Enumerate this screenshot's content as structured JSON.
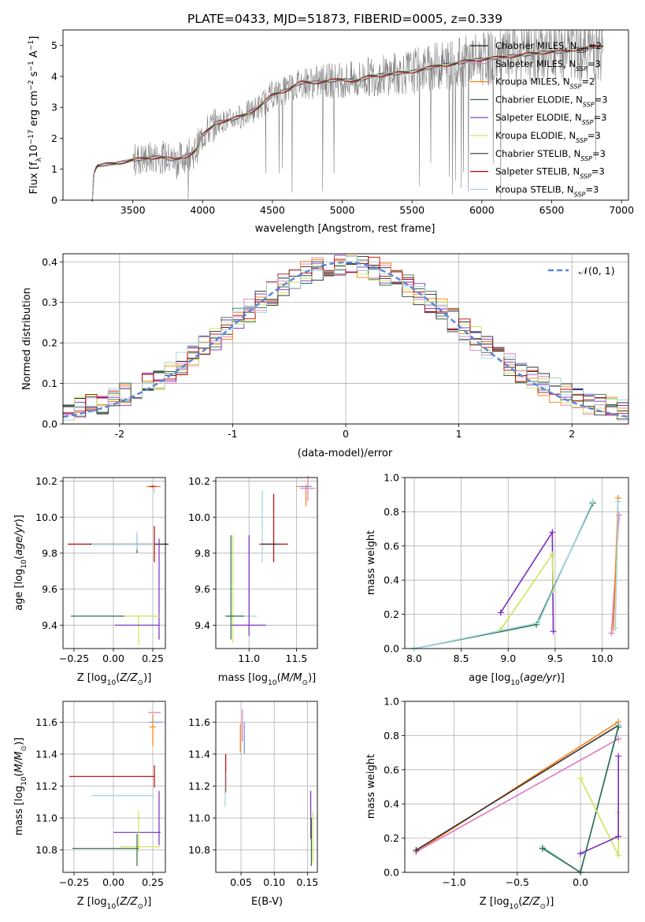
{
  "figure_title": "PLATE=0433, MJD=51873, FIBERID=0005, z=0.339",
  "colors": {
    "Chabrier MILES": "#1f1f1f",
    "Salpeter MILES": "#e377c2",
    "Kroupa MILES": "#ff7f0e",
    "Chabrier ELODIE": "#2c6e49",
    "Salpeter ELODIE": "#7b2cbf",
    "Kroupa ELODIE": "#cfe35a",
    "Chabrier STELIB": "#303030",
    "Salpeter STELIB": "#c00000",
    "Kroupa STELIB": "#9fd8e0",
    "observed": "#808080",
    "gauss": "#5b86d8",
    "extra_blue": "#6495ed"
  },
  "legend_models": [
    {
      "name": "Chabrier MILES",
      "nssp": "2"
    },
    {
      "name": "Salpeter MILES",
      "nssp": "3"
    },
    {
      "name": "Kroupa MILES",
      "nssp": "2"
    },
    {
      "name": "Chabrier ELODIE",
      "nssp": "3"
    },
    {
      "name": "Salpeter ELODIE",
      "nssp": "3"
    },
    {
      "name": "Kroupa ELODIE",
      "nssp": "3"
    },
    {
      "name": "Chabrier STELIB",
      "nssp": "3"
    },
    {
      "name": "Salpeter STELIB",
      "nssp": "3"
    },
    {
      "name": "Kroupa STELIB",
      "nssp": "3"
    }
  ],
  "chart_data": [
    {
      "id": "spectrum",
      "type": "line",
      "xlabel": "wavelength [Angstrom, rest frame]",
      "ylabel": "Flux [f_λ 10^-17 erg cm^-2 s^-1 A^-1]",
      "xlim": [
        3000,
        7050
      ],
      "ylim": [
        0,
        5.5
      ],
      "xticks": [
        3500,
        4000,
        4500,
        5000,
        5500,
        6000,
        6500,
        7000
      ],
      "yticks": [
        0,
        1,
        2,
        3,
        4,
        5
      ],
      "grid": false,
      "legend": "top-right",
      "continuum": [
        [
          3210,
          0.0
        ],
        [
          3215,
          0.8
        ],
        [
          3240,
          1.1
        ],
        [
          3300,
          1.15
        ],
        [
          3400,
          1.2
        ],
        [
          3500,
          1.3
        ],
        [
          3600,
          1.35
        ],
        [
          3700,
          1.4
        ],
        [
          3800,
          1.3
        ],
        [
          3900,
          1.45
        ],
        [
          3950,
          1.6
        ],
        [
          4000,
          2.1
        ],
        [
          4100,
          2.5
        ],
        [
          4200,
          2.6
        ],
        [
          4300,
          2.75
        ],
        [
          4400,
          3.0
        ],
        [
          4500,
          3.4
        ],
        [
          4600,
          3.55
        ],
        [
          4700,
          3.8
        ],
        [
          4800,
          3.8
        ],
        [
          4900,
          3.85
        ],
        [
          5000,
          3.9
        ],
        [
          5100,
          3.85
        ],
        [
          5200,
          4.0
        ],
        [
          5300,
          4.05
        ],
        [
          5400,
          4.1
        ],
        [
          5500,
          4.15
        ],
        [
          5600,
          4.25
        ],
        [
          5700,
          4.35
        ],
        [
          5800,
          4.4
        ],
        [
          5900,
          4.5
        ],
        [
          6000,
          4.55
        ],
        [
          6100,
          4.6
        ],
        [
          6200,
          4.65
        ],
        [
          6300,
          4.7
        ],
        [
          6400,
          4.75
        ],
        [
          6500,
          4.8
        ],
        [
          6600,
          4.8
        ],
        [
          6700,
          4.9
        ],
        [
          6800,
          4.95
        ],
        [
          6870,
          4.98
        ]
      ]
    },
    {
      "id": "residuals",
      "type": "line",
      "xlabel": "(data-model)/error",
      "ylabel": "Normed distribution",
      "xlim": [
        -2.5,
        2.5
      ],
      "ylim": [
        0,
        0.42
      ],
      "xticks": [
        -2,
        -1,
        0,
        1,
        2
      ],
      "yticks": [
        0.0,
        0.1,
        0.2,
        0.3,
        0.4
      ],
      "grid": true,
      "legend": "top-right",
      "gauss_label": "𝒩(0, 1)"
    },
    {
      "id": "age_vs_Z",
      "type": "scatter",
      "xlabel": "Z [log10(Z/Z⊙)]",
      "ylabel": "age [log10(age/yr)]",
      "xlim": [
        -0.32,
        0.33
      ],
      "ylim": [
        9.27,
        10.22
      ],
      "xticks": [
        -0.25,
        0.0,
        0.25
      ],
      "xtick_labels": [
        "−0.25",
        "0.00",
        "0.25"
      ],
      "yticks": [
        9.4,
        9.6,
        9.8,
        10.0,
        10.2
      ],
      "grid": true,
      "crosses": [
        {
          "m": "Salpeter MILES",
          "x": 0.27,
          "xe": 0.03,
          "y": 10.17,
          "ye": 0.0
        },
        {
          "m": "Kroupa MILES",
          "x": 0.25,
          "xe": 0.04,
          "y": 10.17,
          "ye": 0.01
        },
        {
          "m": "Salpeter STELIB",
          "x": 0.25,
          "xe": 0.02,
          "y": 10.17,
          "ye": 0.0
        },
        {
          "m": "Kroupa STELIB",
          "x": 0.26,
          "xe": 0.0,
          "y": 10.15,
          "ye": 0.02
        },
        {
          "m": "Salpeter STELIB",
          "x": 0.26,
          "xe": 0.0,
          "y": 9.85,
          "ye": 0.1
        },
        {
          "m": "Salpeter STELIB",
          "x": -0.02,
          "xe": 0.27,
          "y": 9.85,
          "ye": 0.0
        },
        {
          "m": "Chabrier MILES",
          "x": 0.1,
          "xe": 0.25,
          "y": 9.85,
          "ye": 0.0
        },
        {
          "m": "Kroupa STELIB",
          "x": 0.06,
          "xe": 0.2,
          "y": 9.85,
          "ye": 0.0
        },
        {
          "m": "Chabrier ELODIE",
          "x": 0.15,
          "xe": 0.0,
          "y": 9.85,
          "ye": 0.05
        },
        {
          "m": "Kroupa STELIB",
          "x": 0.15,
          "xe": 0.0,
          "y": 9.87,
          "ye": 0.05
        },
        {
          "m": "Salpeter ELODIE",
          "x": 0.29,
          "xe": 0.0,
          "y": 9.6,
          "ye": 0.28
        },
        {
          "m": "Kroupa ELODIE",
          "x": 0.16,
          "xe": 0.14,
          "y": 9.45,
          "ye": 0.0
        },
        {
          "m": "Kroupa ELODIE",
          "x": 0.16,
          "xe": 0.0,
          "y": 9.37,
          "ye": 0.08
        },
        {
          "m": "Chabrier ELODIE",
          "x": -0.1,
          "xe": 0.17,
          "y": 9.45,
          "ye": 0.0
        },
        {
          "m": "Salpeter ELODIE",
          "x": 0.15,
          "xe": 0.14,
          "y": 9.4,
          "ye": 0.0
        }
      ]
    },
    {
      "id": "age_vs_mass",
      "type": "scatter",
      "xlabel": "mass [log10(M/M⊙)]",
      "xlim": [
        10.65,
        11.72
      ],
      "ylim": [
        9.27,
        10.22
      ],
      "xticks": [
        11.0,
        11.5
      ],
      "yticks": [
        9.4,
        9.6,
        9.8,
        10.0,
        10.2
      ],
      "grid": true,
      "crosses": [
        {
          "m": "Salpeter MILES",
          "x": 11.62,
          "xe": 0.08,
          "y": 10.16,
          "ye": 0.07
        },
        {
          "m": "Kroupa MILES",
          "x": 11.58,
          "xe": 0.08,
          "y": 10.17,
          "ye": 0.0
        },
        {
          "m": "Kroupa MILES",
          "x": 11.6,
          "xe": 0.0,
          "y": 10.12,
          "ye": 0.06
        },
        {
          "m": "extra",
          "x": 11.6,
          "xe": 0.06,
          "y": 10.17,
          "ye": 0.0
        },
        {
          "m": "Kroupa STELIB",
          "x": 11.14,
          "xe": 0.0,
          "y": 9.95,
          "ye": 0.2
        },
        {
          "m": "Salpeter STELIB",
          "x": 11.26,
          "xe": 0.0,
          "y": 9.94,
          "ye": 0.19
        },
        {
          "m": "Salpeter STELIB",
          "x": 11.26,
          "xe": 0.15,
          "y": 9.85,
          "ye": 0.0
        },
        {
          "m": "Chabrier STELIB",
          "x": 11.22,
          "xe": 0.08,
          "y": 9.85,
          "ye": 0.0
        },
        {
          "m": "Chabrier ELODIE",
          "x": 10.81,
          "xe": 0.0,
          "y": 9.61,
          "ye": 0.29
        },
        {
          "m": "Kroupa ELODIE",
          "x": 10.83,
          "xe": 0.0,
          "y": 9.6,
          "ye": 0.3
        },
        {
          "m": "Kroupa STELIB",
          "x": 10.93,
          "xe": 0.15,
          "y": 9.45,
          "ye": 0.0
        },
        {
          "m": "Chabrier ELODIE",
          "x": 10.85,
          "xe": 0.1,
          "y": 9.45,
          "ye": 0.0
        },
        {
          "m": "Salpeter ELODIE",
          "x": 11.0,
          "xe": 0.18,
          "y": 9.4,
          "ye": 0.0
        },
        {
          "m": "Salpeter ELODIE",
          "x": 11.0,
          "xe": 0.0,
          "y": 9.62,
          "ye": 0.28
        }
      ]
    },
    {
      "id": "weight_vs_age",
      "type": "line",
      "xlabel": "age [log10(age/yr)]",
      "ylabel": "mass weight",
      "xlim": [
        7.9,
        10.28
      ],
      "ylim": [
        0,
        1.0
      ],
      "xticks": [
        8.0,
        8.5,
        9.0,
        9.5,
        10.0
      ],
      "yticks": [
        0.0,
        0.2,
        0.4,
        0.6,
        0.8,
        1.0
      ],
      "grid": true,
      "series": [
        {
          "m": "Salpeter ELODIE",
          "pts": [
            [
              8.92,
              0.21
            ],
            [
              9.47,
              0.68
            ],
            [
              9.48,
              0.1
            ]
          ]
        },
        {
          "m": "Kroupa ELODIE",
          "pts": [
            [
              8.92,
              0.11
            ],
            [
              9.47,
              0.55
            ],
            [
              9.48,
              0.34
            ]
          ]
        },
        {
          "m": "Chabrier ELODIE",
          "pts": [
            [
              8.0,
              0.0
            ],
            [
              9.3,
              0.14
            ],
            [
              9.9,
              0.85
            ]
          ]
        },
        {
          "m": "Kroupa STELIB",
          "pts": [
            [
              8.0,
              0.0
            ],
            [
              9.32,
              0.15
            ],
            [
              9.9,
              0.86
            ]
          ]
        },
        {
          "m": "Salpeter MILES",
          "pts": [
            [
              10.1,
              0.09
            ],
            [
              10.18,
              0.78
            ]
          ]
        },
        {
          "m": "Kroupa MILES",
          "pts": [
            [
              10.12,
              0.12
            ],
            [
              10.17,
              0.88
            ]
          ]
        },
        {
          "m": "Kroupa STELIB",
          "pts": [
            [
              10.14,
              0.12
            ],
            [
              10.17,
              0.86
            ]
          ]
        }
      ]
    },
    {
      "id": "mass_vs_Z",
      "type": "scatter",
      "xlabel": "Z [log10(Z/Z⊙)]",
      "ylabel": "mass [log10(M/M⊙)]",
      "xlim": [
        -0.32,
        0.33
      ],
      "ylim": [
        10.66,
        11.73
      ],
      "xticks": [
        -0.25,
        0.0,
        0.25
      ],
      "xtick_labels": [
        "−0.25",
        "0.00",
        "0.25"
      ],
      "yticks": [
        10.8,
        11.0,
        11.2,
        11.4,
        11.6
      ],
      "grid": true,
      "crosses": [
        {
          "m": "Salpeter MILES",
          "x": 0.26,
          "xe": 0.04,
          "y": 11.66,
          "ye": 0.0
        },
        {
          "m": "extra",
          "x": 0.27,
          "xe": 0.04,
          "y": 11.6,
          "ye": 0.0
        },
        {
          "m": "Kroupa MILES",
          "x": 0.25,
          "xe": 0.02,
          "y": 11.57,
          "ye": 0.0
        },
        {
          "m": "Kroupa MILES",
          "x": 0.25,
          "xe": 0.0,
          "y": 11.55,
          "ye": 0.1
        },
        {
          "m": "Salpeter STELIB",
          "x": -0.01,
          "xe": 0.27,
          "y": 11.26,
          "ye": 0.0
        },
        {
          "m": "Salpeter STELIB",
          "x": 0.26,
          "xe": 0.0,
          "y": 11.26,
          "ye": 0.07
        },
        {
          "m": "Kroupa STELIB",
          "x": 0.06,
          "xe": 0.2,
          "y": 11.14,
          "ye": 0.0
        },
        {
          "m": "Salpeter ELODIE",
          "x": 0.29,
          "xe": 0.0,
          "y": 11.0,
          "ye": 0.17
        },
        {
          "m": "Salpeter ELODIE",
          "x": 0.15,
          "xe": 0.15,
          "y": 10.91,
          "ye": 0.0
        },
        {
          "m": "Kroupa ELODIE",
          "x": 0.16,
          "xe": 0.0,
          "y": 10.92,
          "ye": 0.13
        },
        {
          "m": "Kroupa ELODIE",
          "x": 0.17,
          "xe": 0.13,
          "y": 10.82,
          "ye": 0.0
        },
        {
          "m": "Chabrier ELODIE",
          "x": -0.05,
          "xe": 0.21,
          "y": 10.81,
          "ye": 0.0
        },
        {
          "m": "Chabrier ELODIE",
          "x": 0.15,
          "xe": 0.0,
          "y": 10.8,
          "ye": 0.1
        }
      ]
    },
    {
      "id": "mass_vs_EBV",
      "type": "scatter",
      "xlabel": "E(B-V)",
      "xlim": [
        0.012,
        0.165
      ],
      "ylim": [
        10.66,
        11.73
      ],
      "xticks": [
        0.05,
        0.1,
        0.15
      ],
      "yticks": [
        10.8,
        11.0,
        11.2,
        11.4,
        11.6
      ],
      "grid": true,
      "crosses": [
        {
          "m": "Salpeter MILES",
          "x": 0.052,
          "xe": 0.0,
          "y": 11.58,
          "ye": 0.1
        },
        {
          "m": "Kroupa MILES",
          "x": 0.049,
          "xe": 0.0,
          "y": 11.5,
          "ye": 0.09
        },
        {
          "m": "extra",
          "x": 0.055,
          "xe": 0.0,
          "y": 11.5,
          "ye": 0.1
        },
        {
          "m": "Salpeter STELIB",
          "x": 0.027,
          "xe": 0.0,
          "y": 11.28,
          "ye": 0.12
        },
        {
          "m": "Kroupa STELIB",
          "x": 0.026,
          "xe": 0.0,
          "y": 11.18,
          "ye": 0.11
        },
        {
          "m": "Salpeter ELODIE",
          "x": 0.155,
          "xe": 0.0,
          "y": 11.02,
          "ye": 0.15
        },
        {
          "m": "Kroupa ELODIE",
          "x": 0.158,
          "xe": 0.0,
          "y": 10.88,
          "ye": 0.16
        },
        {
          "m": "Chabrier ELODIE",
          "x": 0.156,
          "xe": 0.0,
          "y": 10.85,
          "ye": 0.15
        }
      ]
    },
    {
      "id": "weight_vs_Z",
      "type": "line",
      "xlabel": "Z [log10(Z/Z⊙)]",
      "ylabel": "mass weight",
      "xlim": [
        -1.39,
        0.38
      ],
      "ylim": [
        0,
        1.0
      ],
      "xticks": [
        -1.0,
        -0.5,
        0.0
      ],
      "xtick_labels": [
        "−1.0",
        "−0.5",
        "0.0"
      ],
      "yticks": [
        0.0,
        0.2,
        0.4,
        0.6,
        0.8,
        1.0
      ],
      "grid": true,
      "series": [
        {
          "m": "Kroupa MILES",
          "pts": [
            [
              -1.3,
              0.12
            ],
            [
              0.3,
              0.88
            ]
          ]
        },
        {
          "m": "Salpeter MILES",
          "pts": [
            [
              -1.3,
              0.12
            ],
            [
              0.3,
              0.78
            ]
          ]
        },
        {
          "m": "Chabrier STELIB",
          "pts": [
            [
              -1.3,
              0.13
            ],
            [
              0.3,
              0.86
            ]
          ]
        },
        {
          "m": "Kroupa STELIB",
          "pts": [
            [
              -0.3,
              0.15
            ],
            [
              0.0,
              0.0
            ],
            [
              0.3,
              0.86
            ]
          ]
        },
        {
          "m": "Chabrier ELODIE",
          "pts": [
            [
              -0.3,
              0.14
            ],
            [
              0.0,
              0.0
            ],
            [
              0.3,
              0.85
            ]
          ]
        },
        {
          "m": "Kroupa ELODIE",
          "pts": [
            [
              0.0,
              0.55
            ],
            [
              0.3,
              0.1
            ],
            [
              0.3,
              0.35
            ]
          ]
        },
        {
          "m": "Salpeter ELODIE",
          "pts": [
            [
              0.0,
              0.11
            ],
            [
              0.3,
              0.21
            ],
            [
              0.3,
              0.68
            ]
          ]
        }
      ]
    }
  ]
}
